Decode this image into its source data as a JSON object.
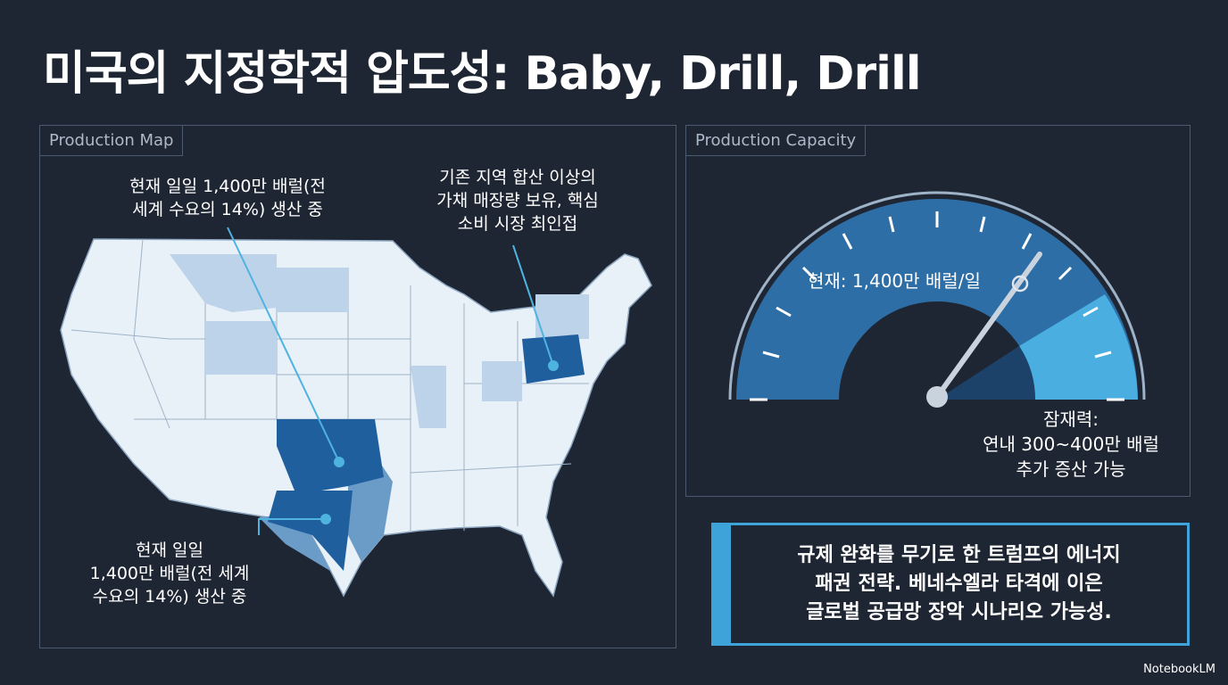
{
  "header": {
    "title": "미국의 지정학적 압도성: Baby, Drill, Drill"
  },
  "map_panel": {
    "label": "Production Map",
    "annotations": [
      {
        "lines": [
          "현재 일일 1,400만 배럴(전",
          "세계 수요의 14%) 생산 중"
        ]
      },
      {
        "lines": [
          "기존 지역 합산 이상의",
          "가채 매장량 보유, 핵심",
          "소비 시장 최인접"
        ]
      },
      {
        "lines": [
          "현재 일일",
          "1,400만 배럴(전 세계",
          "수요의 14%) 생산 중"
        ]
      }
    ]
  },
  "capacity_panel": {
    "label": "Production Capacity",
    "current": "현재: 1,400만 배럴/일",
    "potential": [
      "잠재력:",
      "연내 300~400만 배럴",
      "추가 증산 가능"
    ]
  },
  "callout": {
    "lines": [
      "규제 완화를 무기로 한 트럼프의 에너지",
      "패권 전략. 베네수엘라 타격에 이은",
      "글로벌 공급망 장악 시나리오 가능성."
    ]
  },
  "brand": "NotebookLM"
}
